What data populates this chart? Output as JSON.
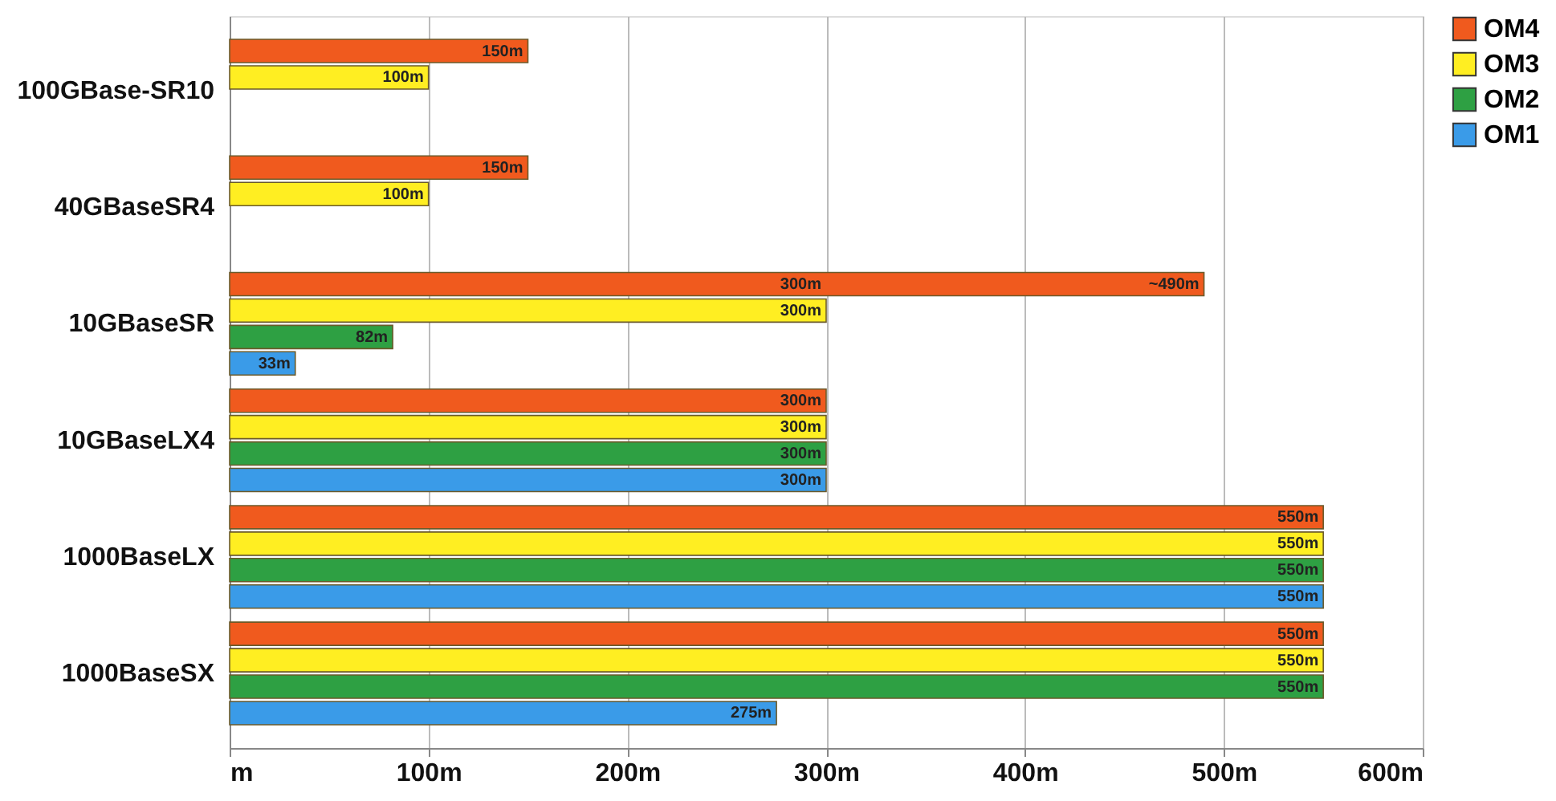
{
  "chart_data": {
    "type": "bar",
    "orientation": "horizontal",
    "categories": [
      "100GBase-SR10",
      "40GBaseSR4",
      "10GBaseSR",
      "10GBaseLX4",
      "1000BaseLX",
      "1000BaseSX"
    ],
    "series": [
      {
        "name": "OM4",
        "color": "#f05a1e",
        "values": [
          150,
          150,
          490,
          300,
          550,
          550
        ],
        "value_labels": [
          "150m",
          "150m",
          "~490m",
          "300m",
          "550m",
          "550m"
        ]
      },
      {
        "name": "OM3",
        "color": "#ffee22",
        "values": [
          100,
          100,
          300,
          300,
          550,
          550
        ],
        "value_labels": [
          "100m",
          "100m",
          "300m",
          "300m",
          "550m",
          "550m"
        ]
      },
      {
        "name": "OM2",
        "color": "#2ea043",
        "values": [
          null,
          null,
          82,
          300,
          550,
          550
        ],
        "value_labels": [
          null,
          null,
          "82m",
          "300m",
          "550m",
          "550m"
        ]
      },
      {
        "name": "OM1",
        "color": "#3a9be8",
        "values": [
          null,
          null,
          33,
          300,
          550,
          275
        ],
        "value_labels": [
          null,
          null,
          "33m",
          "300m",
          "550m",
          "275m"
        ]
      }
    ],
    "annotations": [
      {
        "text": "300m",
        "x": 300,
        "y": "10GBaseSR"
      }
    ],
    "xlim": [
      0,
      600
    ],
    "xticks": [
      {
        "value": 0,
        "label": "m"
      },
      {
        "value": 100,
        "label": "100m"
      },
      {
        "value": 200,
        "label": "200m"
      },
      {
        "value": 300,
        "label": "300m"
      },
      {
        "value": 400,
        "label": "400m"
      },
      {
        "value": 500,
        "label": "500m"
      },
      {
        "value": 600,
        "label": "600m"
      }
    ],
    "grid": "x",
    "legend": "right"
  }
}
